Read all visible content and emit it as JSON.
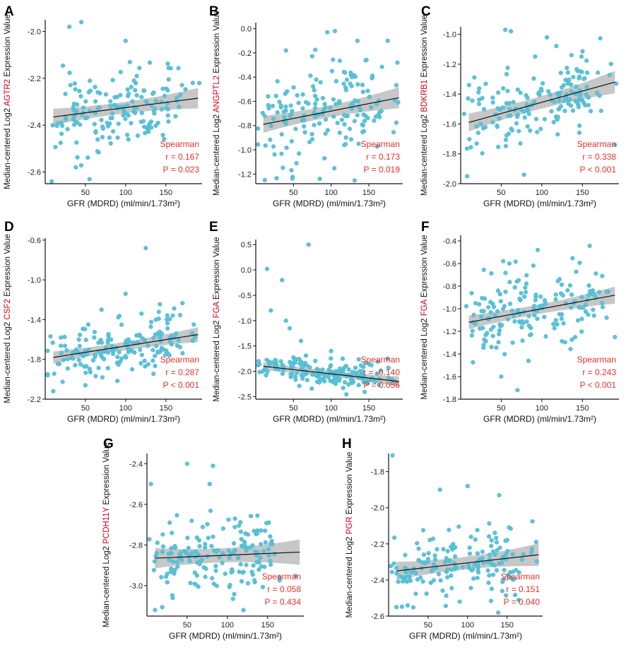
{
  "figure": {
    "colors": {
      "point": "#5bc3d9",
      "point_edge": "#43aac2",
      "fit_line": "#111111",
      "ci_band": "#bdbdbd",
      "stat_text": "#e8312a",
      "gene_text": "#d0021b",
      "axis": "#111111"
    }
  },
  "chart_data": [
    {
      "panel": "A",
      "type": "scatter",
      "gene": "AGTR2",
      "ylabel_prefix": "Median-centered Log2 ",
      "ylabel_suffix": " Expression Value",
      "xlabel": "GFR (MDRD) (ml/min/1.73m²)",
      "xlim": [
        0,
        195
      ],
      "ylim": [
        -2.65,
        -1.95
      ],
      "xticks": [
        50,
        100,
        150
      ],
      "xtick_labels": [
        "50",
        "100",
        "150"
      ],
      "yticks": [
        -2.6,
        -2.4,
        -2.2,
        -2.0
      ],
      "ytick_labels": [
        "-2.6",
        "-2.4",
        "-2.2",
        "-2.0"
      ],
      "fit": {
        "x": [
          10,
          190
        ],
        "y": [
          -2.365,
          -2.285
        ],
        "ci": 0.035
      },
      "spread": 0.09,
      "n": 170,
      "seed": 11,
      "outliers": [
        [
          30,
          -1.98
        ],
        [
          45,
          -1.96
        ],
        [
          100,
          -2.04
        ],
        [
          8,
          -2.64
        ],
        [
          38,
          -2.58
        ]
      ],
      "stats": {
        "method": "Spearman",
        "r": "r = 0.167",
        "p": "P = 0.023"
      }
    },
    {
      "panel": "B",
      "type": "scatter",
      "gene": "ANGPTL2",
      "ylabel_prefix": "Median-centered Log2 ",
      "ylabel_suffix": " Expression Value",
      "xlabel": "GFR (MDRD) (ml/min/1.73m²)",
      "xlim": [
        0,
        195
      ],
      "ylim": [
        -1.28,
        0.05
      ],
      "xticks": [
        50,
        100,
        150
      ],
      "xtick_labels": [
        "50",
        "100",
        "150"
      ],
      "yticks": [
        -1.2,
        -1.0,
        -0.8,
        -0.6,
        -0.4,
        -0.2,
        0.0
      ],
      "ytick_labels": [
        "-1.2",
        "-1.0",
        "-0.8",
        "-0.6",
        "-0.4",
        "-0.2",
        "0.0"
      ],
      "fit": {
        "x": [
          10,
          190
        ],
        "y": [
          -0.79,
          -0.57
        ],
        "ci": 0.07
      },
      "spread": 0.22,
      "n": 170,
      "seed": 23,
      "outliers": [
        [
          105,
          -0.02
        ],
        [
          95,
          -0.03
        ],
        [
          175,
          -0.1
        ],
        [
          40,
          -0.18
        ],
        [
          12,
          -1.25
        ],
        [
          85,
          -1.24
        ]
      ],
      "stats": {
        "method": "Spearman",
        "r": "r = 0.173",
        "p": "P = 0.019"
      }
    },
    {
      "panel": "C",
      "type": "scatter",
      "gene": "BDKRB1",
      "ylabel_prefix": "Median-centered Log2 ",
      "ylabel_suffix": " Expression Value",
      "xlabel": "GFR (MDRD) (ml/min/1.73m²)",
      "xlim": [
        0,
        195
      ],
      "ylim": [
        -2.0,
        -0.95
      ],
      "xticks": [
        50,
        100,
        150
      ],
      "xtick_labels": [
        "50",
        "100",
        "150"
      ],
      "yticks": [
        -2.0,
        -1.8,
        -1.6,
        -1.4,
        -1.2,
        -1.0
      ],
      "ytick_labels": [
        "-2.0",
        "-1.8",
        "-1.6",
        "-1.4",
        "-1.2",
        "-1.0"
      ],
      "fit": {
        "x": [
          10,
          190
        ],
        "y": [
          -1.59,
          -1.32
        ],
        "ci": 0.06
      },
      "spread": 0.14,
      "n": 170,
      "seed": 37,
      "outliers": [
        [
          55,
          -0.97
        ],
        [
          62,
          -0.98
        ],
        [
          8,
          -1.95
        ],
        [
          78,
          -1.94
        ],
        [
          190,
          -1.74
        ]
      ],
      "stats": {
        "method": "Spearman",
        "r": "r = 0.338",
        "p": "P < 0.001"
      }
    },
    {
      "panel": "D",
      "type": "scatter",
      "gene": "CSF2",
      "ylabel_prefix": "Median-centered Log2 ",
      "ylabel_suffix": " Expression Value",
      "xlabel": "GFR (MDRD) (ml/min/1.73m²)",
      "xlim": [
        0,
        195
      ],
      "ylim": [
        -2.2,
        -0.58
      ],
      "xticks": [
        50,
        100,
        150
      ],
      "xtick_labels": [
        "50",
        "100",
        "150"
      ],
      "yticks": [
        -2.2,
        -1.8,
        -1.4,
        -1.0,
        -0.6
      ],
      "ytick_labels": [
        "-2.2",
        "-1.8",
        "-1.4",
        "-1.0",
        "-0.6"
      ],
      "fit": {
        "x": [
          10,
          190
        ],
        "y": [
          -1.78,
          -1.55
        ],
        "ci": 0.06
      },
      "spread": 0.14,
      "n": 170,
      "seed": 41,
      "outliers": [
        [
          125,
          -0.68
        ],
        [
          100,
          -1.14
        ],
        [
          70,
          -1.3
        ],
        [
          10,
          -2.12
        ],
        [
          50,
          -2.06
        ]
      ],
      "stats": {
        "method": "Spearman",
        "r": "r = 0.287",
        "p": "P < 0.001"
      }
    },
    {
      "panel": "E",
      "type": "scatter",
      "gene": "FGA",
      "ylabel_prefix": "Median-centered Log2 ",
      "ylabel_suffix": " Expression Value",
      "xlabel": "GFR (MDRD) (ml/min/1.73m²)",
      "xlim": [
        0,
        195
      ],
      "ylim": [
        -2.55,
        0.6
      ],
      "xticks": [
        50,
        100,
        150
      ],
      "xtick_labels": [
        "50",
        "100",
        "150"
      ],
      "yticks": [
        -2.5,
        -2.0,
        -1.5,
        -1.0,
        -0.5,
        0.0,
        0.5
      ],
      "ytick_labels": [
        "-2.5",
        "-2.0",
        "-1.5",
        "-1.0",
        "-0.5",
        "0.0",
        "0.5"
      ],
      "fit": {
        "x": [
          10,
          190
        ],
        "y": [
          -1.9,
          -2.2
        ],
        "ci": 0.08
      },
      "spread": 0.14,
      "n": 170,
      "seed": 53,
      "outliers": [
        [
          70,
          0.5
        ],
        [
          15,
          0.02
        ],
        [
          35,
          -0.2
        ],
        [
          20,
          -0.8
        ],
        [
          40,
          -1.0
        ],
        [
          45,
          -1.15
        ],
        [
          60,
          -1.4
        ],
        [
          100,
          -1.6
        ],
        [
          175,
          -1.75
        ]
      ],
      "stats": {
        "method": "Spearman",
        "r": "r = -0.140",
        "p": "P = 0.056"
      }
    },
    {
      "panel": "F",
      "type": "scatter",
      "gene": "FGA",
      "ylabel_prefix": "Median-centered Log2 ",
      "ylabel_suffix": " Expression Value",
      "xlabel": "GFR (MDRD) (ml/min/1.73m²)",
      "xlim": [
        0,
        195
      ],
      "ylim": [
        -1.8,
        -0.35
      ],
      "xticks": [
        50,
        100,
        150
      ],
      "xtick_labels": [
        "50",
        "100",
        "150"
      ],
      "yticks": [
        -1.8,
        -1.6,
        -1.4,
        -1.2,
        -1.0,
        -0.8,
        -0.6,
        -0.4
      ],
      "ytick_labels": [
        "-1.8",
        "-1.6",
        "-1.4",
        "-1.2",
        "-1.0",
        "-0.8",
        "-0.6",
        "-0.4"
      ],
      "fit": {
        "x": [
          10,
          190
        ],
        "y": [
          -1.12,
          -0.88
        ],
        "ci": 0.06
      },
      "spread": 0.17,
      "n": 170,
      "seed": 67,
      "outliers": [
        [
          95,
          -0.48
        ],
        [
          60,
          -0.6
        ],
        [
          180,
          -0.85
        ],
        [
          70,
          -1.72
        ],
        [
          50,
          -1.6
        ],
        [
          190,
          -1.25
        ]
      ],
      "stats": {
        "method": "Spearman",
        "r": "r = 0.243",
        "p": "P < 0.001"
      }
    },
    {
      "panel": "G",
      "type": "scatter",
      "gene": "PCDH11Y",
      "ylabel_prefix": "Median-centered Log2 ",
      "ylabel_suffix": " Expression Value",
      "xlabel": "GFR (MDRD) (ml/min/1.73m²)",
      "xlim": [
        0,
        195
      ],
      "ylim": [
        -3.15,
        -2.35
      ],
      "xticks": [
        50,
        100,
        150
      ],
      "xtick_labels": [
        "50",
        "100",
        "150"
      ],
      "yticks": [
        -3.0,
        -2.8,
        -2.6,
        -2.4
      ],
      "ytick_labels": [
        "-3.0",
        "-2.8",
        "-2.6",
        "-2.4"
      ],
      "fit": {
        "x": [
          10,
          190
        ],
        "y": [
          -2.865,
          -2.835
        ],
        "ci": 0.05
      },
      "spread": 0.1,
      "n": 170,
      "seed": 79,
      "outliers": [
        [
          50,
          -2.4
        ],
        [
          82,
          -2.41
        ],
        [
          5,
          -2.5
        ],
        [
          78,
          -2.5
        ],
        [
          10,
          -3.12
        ],
        [
          120,
          -3.12
        ]
      ],
      "stats": {
        "method": "Spearman",
        "r": "r = 0.058",
        "p": "P = 0.434"
      }
    },
    {
      "panel": "H",
      "type": "scatter",
      "gene": "PGR",
      "ylabel_prefix": "Median-centered Log2 ",
      "ylabel_suffix": " Expression Value",
      "xlabel": "GFR (MDRD) (ml/min/1.73m²)",
      "xlim": [
        0,
        195
      ],
      "ylim": [
        -2.6,
        -1.7
      ],
      "xticks": [
        50,
        100,
        150
      ],
      "xtick_labels": [
        "50",
        "100",
        "150"
      ],
      "yticks": [
        -2.6,
        -2.4,
        -2.2,
        -2.0,
        -1.8
      ],
      "ytick_labels": [
        "-2.6",
        "-2.4",
        "-2.2",
        "-2.0",
        "-1.8"
      ],
      "fit": {
        "x": [
          10,
          190
        ],
        "y": [
          -2.35,
          -2.26
        ],
        "ci": 0.05
      },
      "spread": 0.1,
      "n": 170,
      "seed": 97,
      "outliers": [
        [
          5,
          -1.71
        ],
        [
          100,
          -1.88
        ],
        [
          65,
          -1.9
        ],
        [
          140,
          -1.93
        ],
        [
          10,
          -2.55
        ],
        [
          90,
          -2.52
        ]
      ],
      "stats": {
        "method": "Spearman",
        "r": "r = 0.151",
        "p": "P = 0.040"
      }
    }
  ]
}
